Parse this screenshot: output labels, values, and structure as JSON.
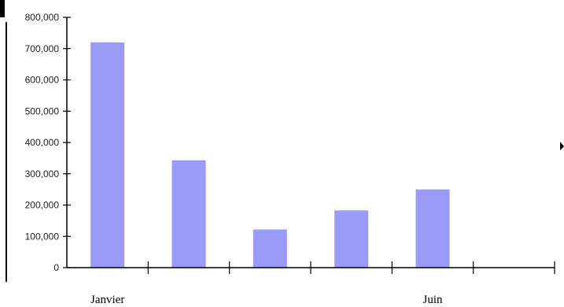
{
  "chart_data": {
    "type": "bar",
    "categories": [
      "Janvier",
      "",
      "",
      "",
      "Juin",
      ""
    ],
    "values": [
      720000,
      343000,
      122000,
      183000,
      250000,
      null
    ],
    "ylim": [
      0,
      800000
    ],
    "ytick_labels": [
      "0",
      "100,000",
      "200,000",
      "300,000",
      "400,000",
      "500,000",
      "600,000",
      "700,000",
      "800,000"
    ],
    "grid": false,
    "title": "",
    "xlabel": "",
    "ylabel": ""
  },
  "colors": {
    "bar": "#9a9af8",
    "axis": "#000000"
  }
}
